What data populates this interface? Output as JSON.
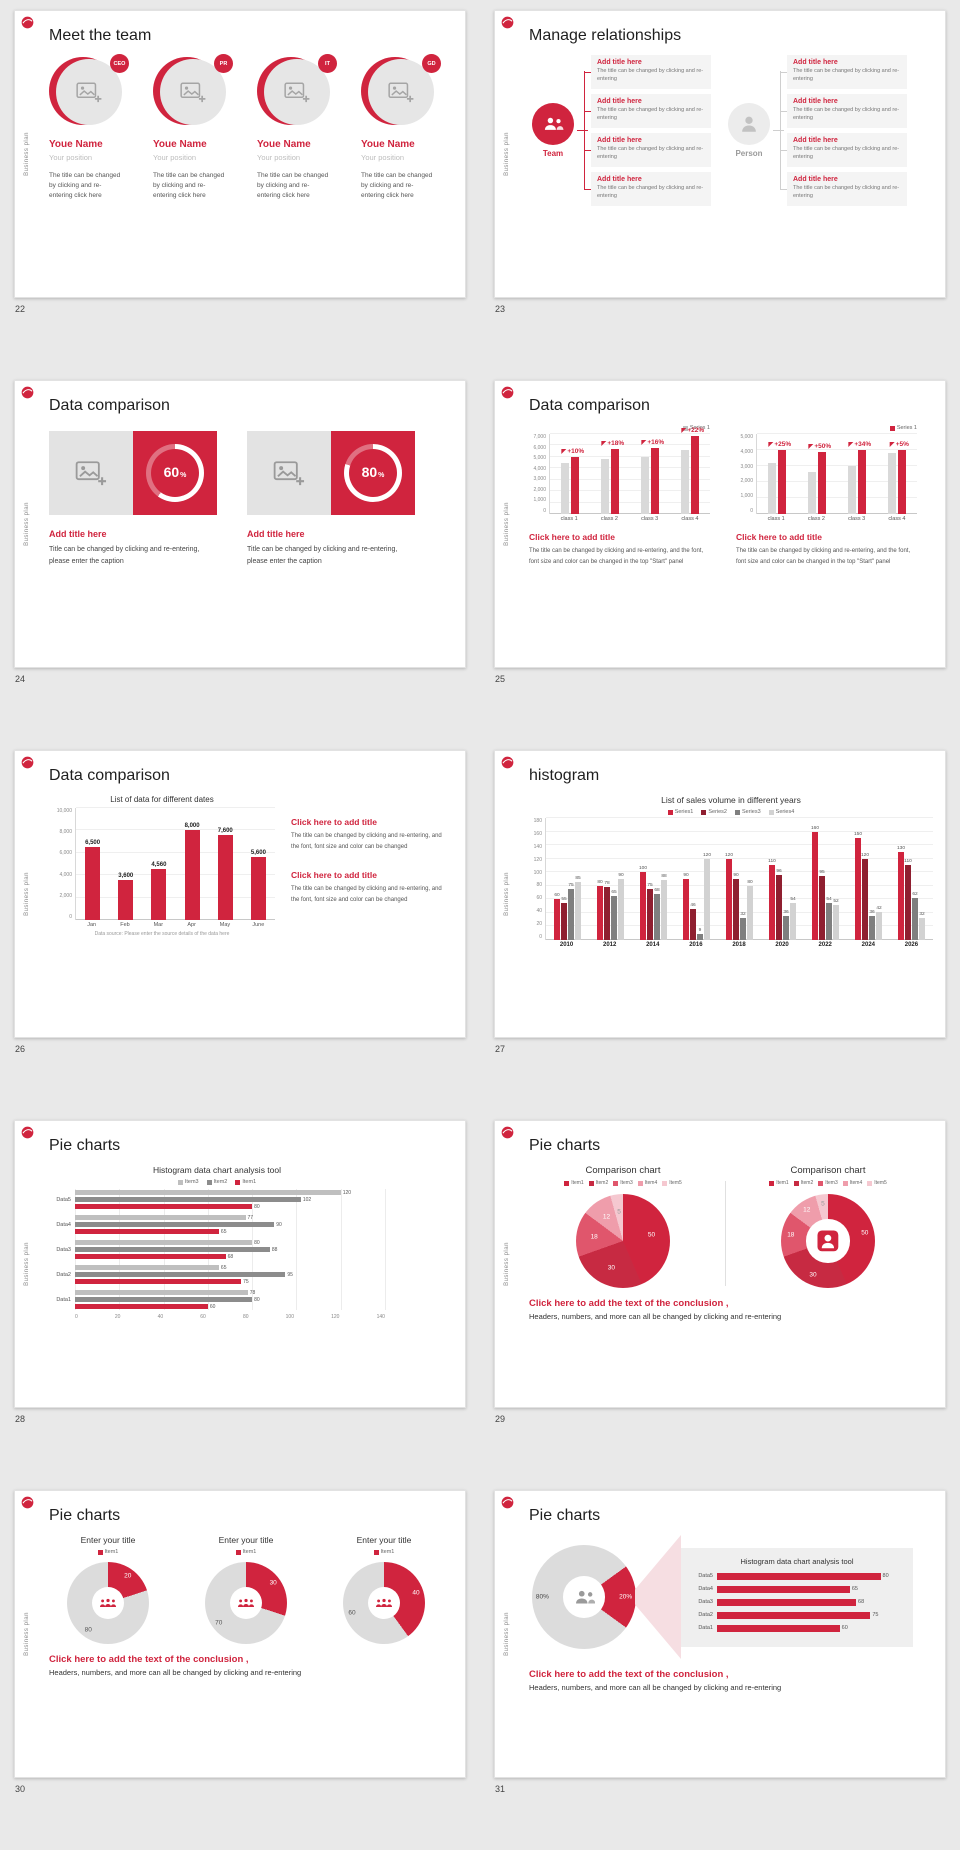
{
  "brand": {
    "rail_label": "Business plan",
    "accent": "#d0243e"
  },
  "pages": [
    "22",
    "23",
    "24",
    "25",
    "26",
    "27",
    "28",
    "29",
    "30",
    "31"
  ],
  "slides": {
    "s22": {
      "title": "Meet the team",
      "members": [
        {
          "badge": "CEO",
          "name": "Youe Name",
          "position": "Your position",
          "desc": "The title can be changed by clicking and re-entering click here"
        },
        {
          "badge": "PR",
          "name": "Youe Name",
          "position": "Your position",
          "desc": "The title can be changed by clicking and re-entering click here"
        },
        {
          "badge": "IT",
          "name": "Youe Name",
          "position": "Your position",
          "desc": "The title can be changed by clicking and re-entering click here"
        },
        {
          "badge": "GD",
          "name": "Youe Name",
          "position": "Your position",
          "desc": "The title can be changed by clicking and re-entering click here"
        }
      ]
    },
    "s23": {
      "title": "Manage relationships",
      "team_label": "Team",
      "person_label": "Person",
      "left_items": [
        {
          "title": "Add title here",
          "desc": "The title can be changed by clicking and re-entering"
        },
        {
          "title": "Add title here",
          "desc": "The title can be changed by clicking and re-entering"
        },
        {
          "title": "Add title here",
          "desc": "The title can be changed by clicking and re-entering"
        },
        {
          "title": "Add title here",
          "desc": "The title can be changed by clicking and re-entering"
        }
      ],
      "right_items": [
        {
          "title": "Add title here",
          "desc": "The title can be changed by clicking and re-entering"
        },
        {
          "title": "Add title here",
          "desc": "The title can be changed by clicking and re-entering"
        },
        {
          "title": "Add title here",
          "desc": "The title can be changed by clicking and re-entering"
        },
        {
          "title": "Add title here",
          "desc": "The title can be changed by clicking and re-entering"
        }
      ]
    },
    "s24": {
      "title": "Data comparison",
      "percent_suffix": "%",
      "cards": [
        {
          "percent": 60,
          "title": "Add title here",
          "caption": "Title can be changed by clicking and re-entering, please enter the caption"
        },
        {
          "percent": 80,
          "title": "Add title here",
          "caption": "Title can be changed by clicking and re-entering, please enter the caption"
        }
      ]
    },
    "s25": {
      "title": "Data comparison",
      "blocks": [
        {
          "title": "Click here to add title",
          "desc": "The title can be changed by clicking and re-entering, and the font, font size and color can be changed in the top \"Start\" panel"
        },
        {
          "title": "Click here to add title",
          "desc": "The title can be changed by clicking and re-entering, and the font, font size and color can be changed in the top \"Start\" panel"
        }
      ]
    },
    "s26": {
      "title": "Data comparison",
      "blocks": [
        {
          "title": "Click here to add title",
          "desc": "The title can be changed by clicking and re-entering, and the font, font size and color can be changed"
        },
        {
          "title": "Click here to add title",
          "desc": "The title can be changed by clicking and re-entering, and the font, font size and color can be changed"
        }
      ]
    },
    "s27": {
      "title": "histogram"
    },
    "s28": {
      "title": "Pie charts"
    },
    "s29": {
      "title": "Pie charts",
      "conclusion": {
        "title": "Click here to add the text of the conclusion ,",
        "text": "Headers, numbers, and more can all be changed by clicking and re-entering"
      }
    },
    "s30": {
      "title": "Pie charts",
      "conclusion": {
        "title": "Click here to add the text of the conclusion ,",
        "text": "Headers, numbers, and more can all be changed by clicking and re-entering"
      }
    },
    "s31": {
      "title": "Pie charts",
      "conclusion": {
        "title": "Click here to add the text of the conclusion ,",
        "text": "Headers, numbers, and more can all be changed by clicking and re-entering"
      }
    }
  },
  "chart_data": [
    {
      "id": "s25-left",
      "type": "bar",
      "legend": [
        "Series 1"
      ],
      "legend_colors": [
        "#bfbfbf"
      ],
      "legend_align": "flex-end",
      "categories": [
        "class 1",
        "class 2",
        "class 3",
        "class 4"
      ],
      "series": [
        {
          "name": "base",
          "color": "#d9d9d9",
          "values": [
            4500,
            4800,
            5000,
            5600
          ]
        },
        {
          "name": "Series 1",
          "color": "#d0243e",
          "values": [
            5000,
            5700,
            5800,
            6800
          ]
        }
      ],
      "annotations": [
        "+10%",
        "+18%",
        "+16%",
        "+22%"
      ],
      "ymax": 7000,
      "ytick": 1000
    },
    {
      "id": "s25-right",
      "type": "bar",
      "legend": [
        "Series 1"
      ],
      "legend_colors": [
        "#d0243e"
      ],
      "legend_align": "flex-end",
      "categories": [
        "class 1",
        "class 2",
        "class 3",
        "class 4"
      ],
      "series": [
        {
          "name": "base",
          "color": "#d9d9d9",
          "values": [
            3200,
            2600,
            3000,
            3800
          ]
        },
        {
          "name": "Series 1",
          "color": "#d0243e",
          "values": [
            4000,
            3900,
            4000,
            4000
          ]
        }
      ],
      "annotations": [
        "+25%",
        "+50%",
        "+34%",
        "+5%"
      ],
      "ymax": 5000,
      "ytick": 1000
    },
    {
      "id": "s26",
      "type": "bar",
      "title": "List of data for different dates",
      "categories": [
        "Jan",
        "Feb",
        "Mar",
        "Apr",
        "May",
        "June"
      ],
      "series": [
        {
          "name": "data",
          "color": "#d0243e",
          "values": [
            6500,
            3600,
            4560,
            8000,
            7600,
            5600
          ]
        }
      ],
      "ymax": 10000,
      "ytick": 2000,
      "show_values": true,
      "comma_values": true,
      "note": "Data source: Please enter the source details of the data here"
    },
    {
      "id": "s27",
      "type": "bar",
      "title": "List of sales volume in different years",
      "legend": [
        "Series1",
        "Series2",
        "Series3",
        "Series4"
      ],
      "legend_colors": [
        "#d0243e",
        "#8f1f30",
        "#7f7f7f",
        "#d2d2d2"
      ],
      "legend_align": "center",
      "categories": [
        "2010",
        "2012",
        "2014",
        "2016",
        "2018",
        "2020",
        "2022",
        "2024",
        "2026"
      ],
      "series": [
        {
          "name": "Series1",
          "color": "#d0243e",
          "values": [
            60,
            80,
            100,
            90,
            120,
            110,
            160,
            150,
            130
          ]
        },
        {
          "name": "Series2",
          "color": "#8f1f30",
          "values": [
            55,
            78,
            75,
            46,
            90,
            96,
            95,
            120,
            110
          ]
        },
        {
          "name": "Series3",
          "color": "#7f7f7f",
          "values": [
            75,
            65,
            68,
            9,
            32,
            36,
            54,
            36,
            62
          ]
        },
        {
          "name": "Series4",
          "color": "#d2d2d2",
          "values": [
            85,
            90,
            88,
            120,
            80,
            54,
            52,
            42,
            32
          ]
        }
      ],
      "ymax": 180,
      "ytick": 20,
      "show_values": true,
      "bold_x": true
    },
    {
      "id": "s28",
      "type": "hbar",
      "title": "Histogram data chart analysis tool",
      "legend": [
        "Item3",
        "Item2",
        "Item1"
      ],
      "legend_colors": [
        "#bfbfbf",
        "#8c8c8c",
        "#d0243e"
      ],
      "categories": [
        "Data5",
        "Data4",
        "Data3",
        "Data2",
        "Data1"
      ],
      "series": [
        {
          "name": "Item3",
          "color": "#bfbfbf",
          "values": [
            120,
            77,
            80,
            65,
            78
          ]
        },
        {
          "name": "Item2",
          "color": "#8c8c8c",
          "values": [
            102,
            90,
            88,
            95,
            80
          ]
        },
        {
          "name": "Item1",
          "color": "#d0243e",
          "values": [
            80,
            65,
            68,
            75,
            60
          ]
        }
      ],
      "xmax": 140,
      "xtick": 20,
      "show_values": true
    },
    {
      "id": "s29-pie",
      "type": "pie",
      "title": "Comparison chart",
      "legend": [
        "Item1",
        "Item2",
        "Item3",
        "Item4",
        "Item5"
      ],
      "legend_colors": [
        "#d0243e",
        "#c72a42",
        "#e0566c",
        "#ef9dab",
        "#f5c8d0"
      ],
      "colors": [
        "#d0243e",
        "#c72a42",
        "#e0566c",
        "#ef9dab",
        "#f5c8d0"
      ],
      "values": [
        50,
        30,
        18,
        12,
        5
      ],
      "labels": [
        "50",
        "30",
        "18",
        "12",
        "5"
      ],
      "label_colors": [
        "#fff",
        "#fff",
        "#fff",
        "#fff",
        "#999"
      ],
      "label_r": 0.62
    },
    {
      "id": "s29-donut",
      "type": "pie",
      "donut": true,
      "title": "Comparison chart",
      "legend": [
        "Item1",
        "Item2",
        "Item3",
        "Item4",
        "Item5"
      ],
      "legend_colors": [
        "#d0243e",
        "#c72a42",
        "#e0566c",
        "#ef9dab",
        "#f5c8d0"
      ],
      "colors": [
        "#d0243e",
        "#c72a42",
        "#e0566c",
        "#ef9dab",
        "#f5c8d0"
      ],
      "values": [
        50,
        30,
        18,
        12,
        5
      ],
      "labels": [
        "50",
        "30",
        "18",
        "12",
        "5"
      ],
      "label_colors": [
        "#fff",
        "#fff",
        "#fff",
        "#fff",
        "#999"
      ],
      "hole_inset": "27%",
      "center_icon": "person-badge",
      "label_r": 0.8
    },
    {
      "id": "s30-donut-1",
      "type": "pie",
      "donut": true,
      "title": "Enter your title",
      "legend": [
        "Item1"
      ],
      "legend_colors": [
        "#d0243e"
      ],
      "colors": [
        "#d0243e",
        "#dcdcdc"
      ],
      "values": [
        20,
        80
      ],
      "labels": [
        "20",
        "80"
      ],
      "label_colors": [
        "#fff",
        "#555"
      ],
      "hole_inset": "30%",
      "center_icon": "people3",
      "icon_color": "#d0243e",
      "label_r": 0.82
    },
    {
      "id": "s30-donut-2",
      "type": "pie",
      "donut": true,
      "title": "Enter your title",
      "legend": [
        "Item1"
      ],
      "legend_colors": [
        "#d0243e"
      ],
      "colors": [
        "#d0243e",
        "#dcdcdc"
      ],
      "values": [
        30,
        70
      ],
      "labels": [
        "30",
        "70"
      ],
      "label_colors": [
        "#fff",
        "#555"
      ],
      "hole_inset": "30%",
      "center_icon": "people3",
      "icon_color": "#d0243e",
      "label_r": 0.82
    },
    {
      "id": "s30-donut-3",
      "type": "pie",
      "donut": true,
      "title": "Enter your title",
      "legend": [
        "Item1"
      ],
      "legend_colors": [
        "#d0243e"
      ],
      "colors": [
        "#d0243e",
        "#dcdcdc"
      ],
      "values": [
        40,
        60
      ],
      "labels": [
        "40",
        "60"
      ],
      "label_colors": [
        "#fff",
        "#555"
      ],
      "hole_inset": "30%",
      "center_icon": "people3",
      "icon_color": "#d0243e",
      "label_r": 0.82
    },
    {
      "id": "s31-donut",
      "type": "pie",
      "donut": true,
      "rotate": 54,
      "colors": [
        "#d0243e",
        "#dcdcdc"
      ],
      "values": [
        20,
        80
      ],
      "labels": [
        "20%",
        "80%"
      ],
      "label_colors": [
        "#fff",
        "#444"
      ],
      "hole_inset": "30%",
      "center_icon": "people2",
      "icon_color": "#9a9a9a",
      "label_r": 0.8
    },
    {
      "id": "s31-panel",
      "type": "hbar",
      "title": "Histogram data chart analysis tool",
      "simple": true,
      "categories": [
        "Data5",
        "Data4",
        "Data3",
        "Data2",
        "Data1"
      ],
      "series": [
        {
          "name": "value",
          "color": "#d0243e",
          "values": [
            80,
            65,
            68,
            75,
            60
          ]
        }
      ],
      "xmax": 90,
      "show_values": true
    }
  ]
}
